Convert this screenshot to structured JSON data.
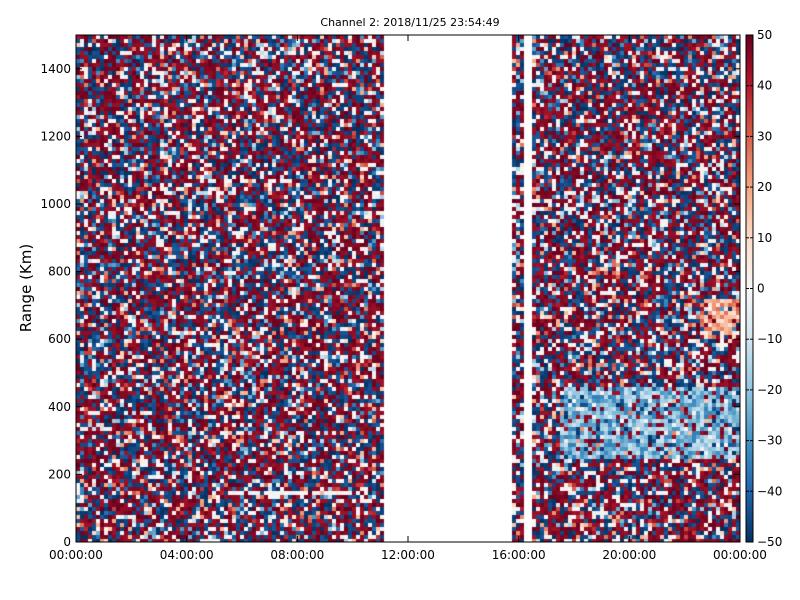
{
  "chart_data": {
    "type": "heatmap",
    "title": "Channel 2: 2018/11/25 23:54:49",
    "xlabel": "",
    "ylabel": "Range (Km)",
    "x_ticks": [
      "00:00:00",
      "04:00:00",
      "08:00:00",
      "12:00:00",
      "16:00:00",
      "20:00:00",
      "00:00:00"
    ],
    "y_ticks": [
      "0",
      "200",
      "400",
      "600",
      "800",
      "1000",
      "1200",
      "1400"
    ],
    "xlim_hours": [
      0,
      24
    ],
    "ylim": [
      0,
      1500
    ],
    "colorbar": {
      "min": -50,
      "max": 50,
      "ticks": [
        "50",
        "40",
        "30",
        "20",
        "10",
        "0",
        "−10",
        "−20",
        "−30",
        "−40",
        "−50"
      ],
      "colormap": "RdBu_r",
      "low_color": "#053061",
      "mid_color": "#f7f7f7",
      "high_color": "#67001f"
    },
    "data_gaps_hours": [
      [
        11.1,
        15.8
      ],
      [
        16.25,
        16.55
      ]
    ],
    "features": [
      {
        "t_start": 17.5,
        "t_end": 24,
        "range_start": 250,
        "range_end": 460,
        "sign": "negative"
      },
      {
        "t_start": 22.5,
        "t_end": 24,
        "range_start": 600,
        "range_end": 720,
        "sign": "positive"
      },
      {
        "t_start": 6.3,
        "t_end": 10.5,
        "range_start": 135,
        "range_end": 155,
        "sign": "neutral"
      }
    ],
    "grid": false
  }
}
